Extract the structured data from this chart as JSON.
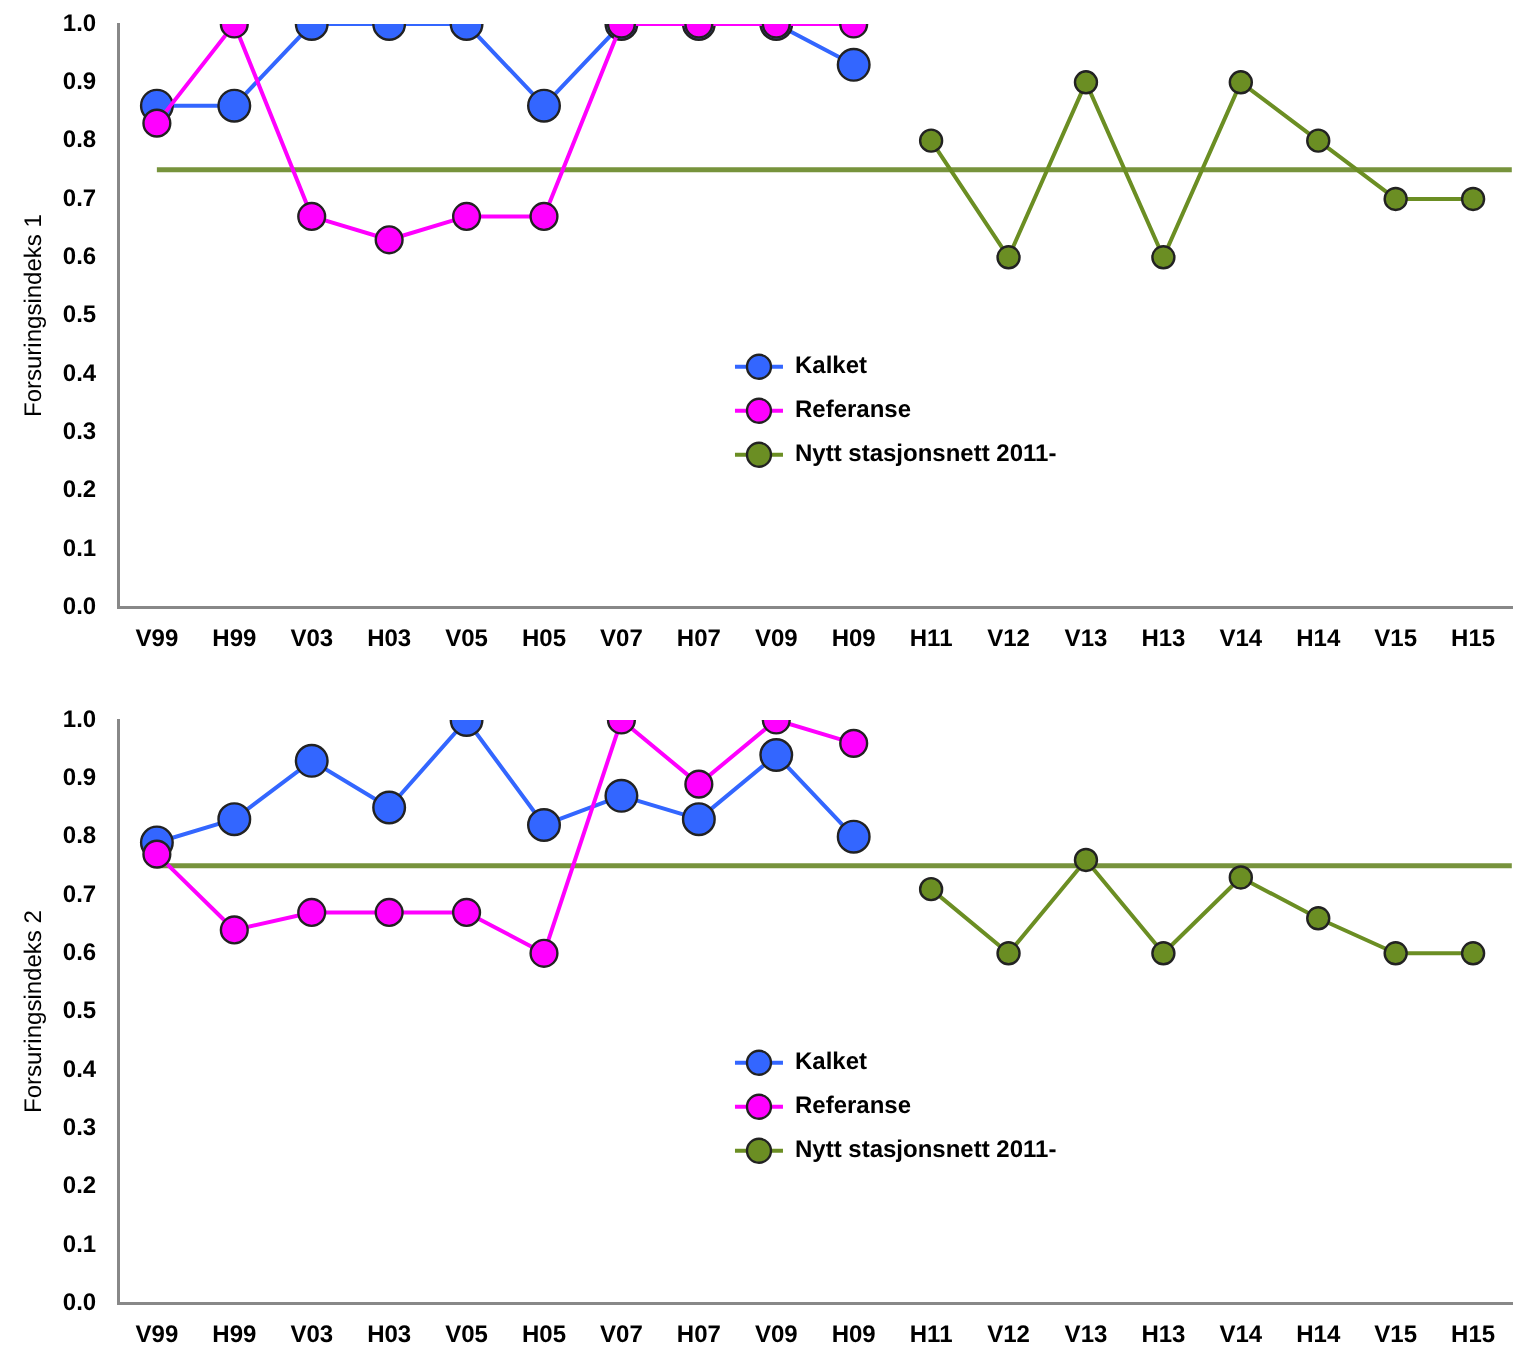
{
  "chart_data": [
    {
      "type": "line",
      "ylabel": "Forsuringsindeks 1",
      "categories": [
        "V99",
        "H99",
        "V03",
        "H03",
        "V05",
        "H05",
        "V07",
        "H07",
        "V09",
        "H09",
        "H11",
        "V12",
        "V13",
        "H13",
        "V14",
        "H14",
        "V15",
        "H15"
      ],
      "series": [
        {
          "name": "Kalket",
          "color": "#3366ff",
          "values": [
            0.86,
            0.86,
            1.0,
            1.0,
            1.0,
            0.86,
            1.0,
            1.0,
            1.0,
            0.93,
            null,
            null,
            null,
            null,
            null,
            null,
            null,
            null
          ]
        },
        {
          "name": "Referanse",
          "color": "#ff00ff",
          "values": [
            0.83,
            1.0,
            0.67,
            0.63,
            0.67,
            0.67,
            1.0,
            1.0,
            1.0,
            1.0,
            null,
            null,
            null,
            null,
            null,
            null,
            null,
            null
          ]
        },
        {
          "name": "Nytt stasjonsnett 2011-",
          "color": "#6b8e23",
          "values": [
            null,
            null,
            null,
            null,
            null,
            null,
            null,
            null,
            null,
            null,
            0.8,
            0.6,
            0.9,
            0.6,
            0.9,
            0.8,
            0.7,
            0.7
          ]
        }
      ],
      "ylim": [
        0,
        1
      ],
      "yticks": [
        {
          "value": 0,
          "label": "0.0"
        },
        {
          "value": 0.1,
          "label": "0.1"
        },
        {
          "value": 0.2,
          "label": "0.2"
        },
        {
          "value": 0.3,
          "label": "0.3"
        },
        {
          "value": 0.4,
          "label": "0.4"
        },
        {
          "value": 0.5,
          "label": "0.5"
        },
        {
          "value": 0.6,
          "label": "0.6"
        },
        {
          "value": 0.7,
          "label": "0.7"
        },
        {
          "value": 0.8,
          "label": "0.8"
        },
        {
          "value": 0.9,
          "label": "0.9"
        },
        {
          "value": 1,
          "label": "1.0"
        }
      ],
      "ref_lines": [
        {
          "axis": "y",
          "value": 0.75,
          "color": "#77933c"
        }
      ],
      "grid": false,
      "legend": "bottom",
      "marker": "circle",
      "line_style": "solid"
    },
    {
      "type": "line",
      "ylabel": "Forsuringsindeks 2",
      "categories": [
        "V99",
        "H99",
        "V03",
        "H03",
        "V05",
        "H05",
        "V07",
        "H07",
        "V09",
        "H09",
        "H11",
        "V12",
        "V13",
        "H13",
        "V14",
        "H14",
        "V15",
        "H15"
      ],
      "series": [
        {
          "name": "Kalket",
          "color": "#3366ff",
          "values": [
            0.79,
            0.83,
            0.93,
            0.85,
            1.0,
            0.82,
            0.87,
            0.83,
            0.94,
            0.8,
            null,
            null,
            null,
            null,
            null,
            null,
            null,
            null
          ]
        },
        {
          "name": "Referanse",
          "color": "#ff00ff",
          "values": [
            0.77,
            0.64,
            0.67,
            0.67,
            0.67,
            0.6,
            1.0,
            0.89,
            1.0,
            0.96,
            null,
            null,
            null,
            null,
            null,
            null,
            null,
            null
          ]
        },
        {
          "name": "Nytt stasjonsnett 2011-",
          "color": "#6b8e23",
          "values": [
            null,
            null,
            null,
            null,
            null,
            null,
            null,
            null,
            null,
            null,
            0.71,
            0.6,
            0.76,
            0.6,
            0.73,
            0.66,
            0.6,
            0.6
          ]
        }
      ],
      "ylim": [
        0,
        1
      ],
      "yticks": [
        {
          "value": 0,
          "label": "0.0"
        },
        {
          "value": 0.1,
          "label": "0.1"
        },
        {
          "value": 0.2,
          "label": "0.2"
        },
        {
          "value": 0.3,
          "label": "0.3"
        },
        {
          "value": 0.4,
          "label": "0.4"
        },
        {
          "value": 0.5,
          "label": "0.5"
        },
        {
          "value": 0.6,
          "label": "0.6"
        },
        {
          "value": 0.7,
          "label": "0.7"
        },
        {
          "value": 0.8,
          "label": "0.8"
        },
        {
          "value": 0.9,
          "label": "0.9"
        },
        {
          "value": 1,
          "label": "1.0"
        }
      ],
      "ref_lines": [
        {
          "axis": "y",
          "value": 0.75,
          "color": "#77933c"
        }
      ],
      "grid": false,
      "legend": "bottom",
      "marker": "circle",
      "line_style": "solid"
    }
  ]
}
